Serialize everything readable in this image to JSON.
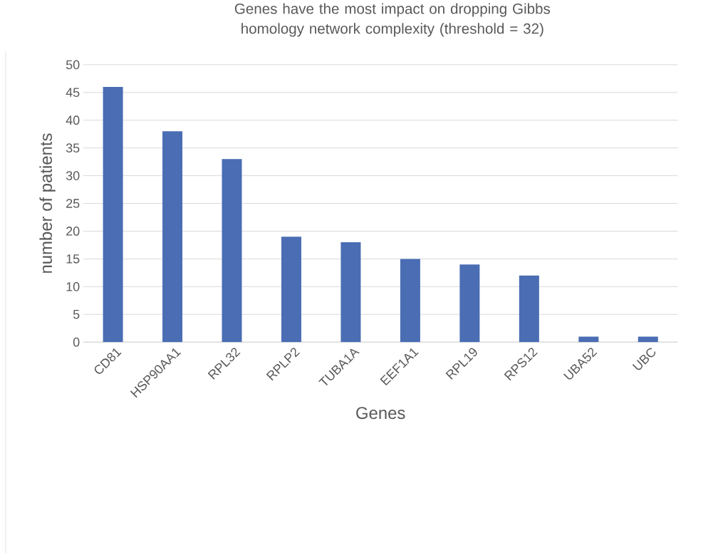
{
  "chart_data": {
    "type": "bar",
    "title": "Genes have the most impact on dropping Gibbs homology network complexity (threshold = 32)",
    "xlabel": "Genes",
    "ylabel": "number of patients",
    "categories": [
      "CD81",
      "HSP90AA1",
      "RPL32",
      "RPLP2",
      "TUBA1A",
      "EEF1A1",
      "RPL19",
      "RPS12",
      "UBA52",
      "UBC"
    ],
    "values": [
      46,
      38,
      33,
      19,
      18,
      15,
      14,
      12,
      1,
      1
    ],
    "color": "#4a6db3",
    "ylim": [
      0,
      50
    ],
    "yticks": [
      0,
      5,
      10,
      15,
      20,
      25,
      30,
      35,
      40,
      45,
      50
    ],
    "grid": "y"
  }
}
